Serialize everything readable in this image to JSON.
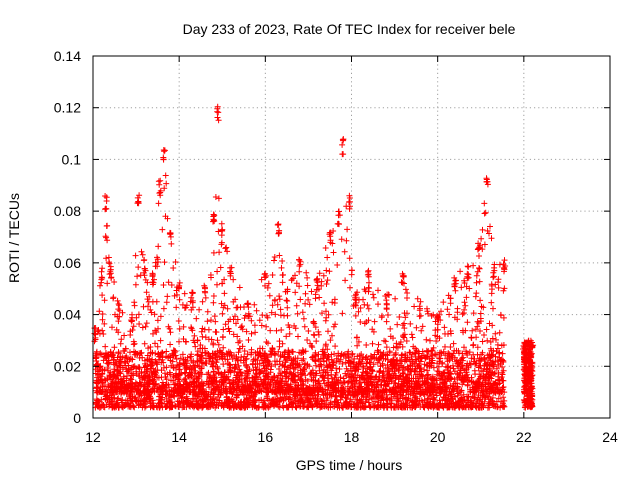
{
  "chart_data": {
    "type": "scatter",
    "title": "Day 233 of 2023, Rate Of TEC Index for receiver bele",
    "xlabel": "GPS time / hours",
    "ylabel": "ROTI / TECUs",
    "xlim": [
      12,
      24
    ],
    "ylim": [
      0,
      0.14
    ],
    "xticks": [
      "12",
      "14",
      "16",
      "18",
      "20",
      "22",
      "24"
    ],
    "yticks": [
      "0",
      "0.02",
      "0.04",
      "0.06",
      "0.08",
      "0.1",
      "0.12",
      "0.14"
    ],
    "grid": true,
    "marker": "plus",
    "marker_color": "#ff0000",
    "data_coverage": {
      "main_span_hours": [
        12.05,
        21.55
      ],
      "secondary_span_hours": [
        22.0,
        22.2
      ]
    },
    "envelope": [
      {
        "x": 12.05,
        "y": 0.035
      },
      {
        "x": 12.2,
        "y": 0.058
      },
      {
        "x": 12.3,
        "y": 0.086
      },
      {
        "x": 12.4,
        "y": 0.059
      },
      {
        "x": 12.6,
        "y": 0.045
      },
      {
        "x": 12.9,
        "y": 0.04
      },
      {
        "x": 13.05,
        "y": 0.089
      },
      {
        "x": 13.2,
        "y": 0.062
      },
      {
        "x": 13.4,
        "y": 0.056
      },
      {
        "x": 13.55,
        "y": 0.092
      },
      {
        "x": 13.65,
        "y": 0.105
      },
      {
        "x": 13.8,
        "y": 0.072
      },
      {
        "x": 14.0,
        "y": 0.053
      },
      {
        "x": 14.3,
        "y": 0.05
      },
      {
        "x": 14.6,
        "y": 0.052
      },
      {
        "x": 14.8,
        "y": 0.082
      },
      {
        "x": 14.9,
        "y": 0.121
      },
      {
        "x": 15.0,
        "y": 0.073
      },
      {
        "x": 15.2,
        "y": 0.06
      },
      {
        "x": 15.6,
        "y": 0.045
      },
      {
        "x": 16.0,
        "y": 0.057
      },
      {
        "x": 16.3,
        "y": 0.075
      },
      {
        "x": 16.5,
        "y": 0.05
      },
      {
        "x": 16.8,
        "y": 0.062
      },
      {
        "x": 17.2,
        "y": 0.055
      },
      {
        "x": 17.5,
        "y": 0.072
      },
      {
        "x": 17.7,
        "y": 0.08
      },
      {
        "x": 17.8,
        "y": 0.108
      },
      {
        "x": 17.95,
        "y": 0.086
      },
      {
        "x": 18.1,
        "y": 0.048
      },
      {
        "x": 18.4,
        "y": 0.058
      },
      {
        "x": 18.8,
        "y": 0.048
      },
      {
        "x": 19.2,
        "y": 0.057
      },
      {
        "x": 19.6,
        "y": 0.045
      },
      {
        "x": 20.0,
        "y": 0.04
      },
      {
        "x": 20.4,
        "y": 0.055
      },
      {
        "x": 20.7,
        "y": 0.06
      },
      {
        "x": 20.95,
        "y": 0.068
      },
      {
        "x": 21.15,
        "y": 0.094
      },
      {
        "x": 21.3,
        "y": 0.06
      },
      {
        "x": 21.55,
        "y": 0.062
      },
      {
        "x": 22.0,
        "y": 0.03
      },
      {
        "x": 22.2,
        "y": 0.03
      }
    ]
  }
}
